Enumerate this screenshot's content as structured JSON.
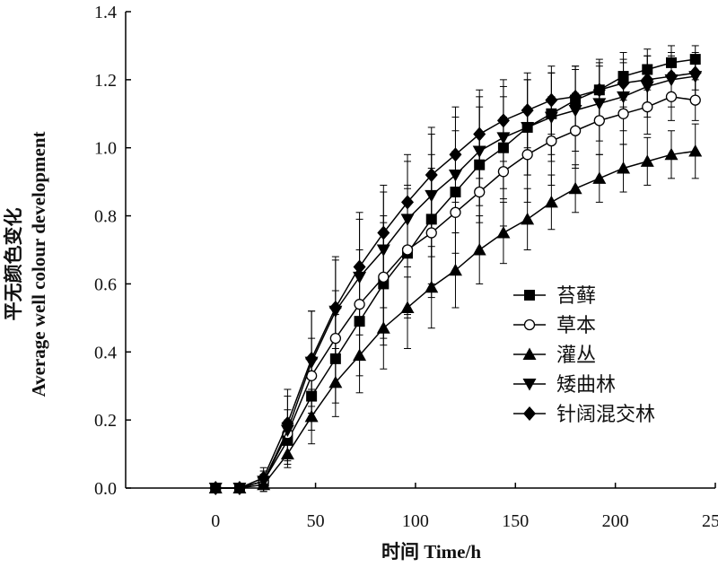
{
  "chart_data": {
    "type": "line",
    "xlabel": "时间 Time/h",
    "ylabel_line1": "平无颜色变化",
    "ylabel_line2": "Average well colour development",
    "xlim": [
      -45,
      250
    ],
    "ylim": [
      0.0,
      1.4
    ],
    "x_ticks": [
      0,
      50,
      100,
      150,
      200,
      250
    ],
    "y_ticks": [
      0.0,
      0.2,
      0.4,
      0.6,
      0.8,
      1.0,
      1.2,
      1.4
    ],
    "y_tick_labels": [
      "0.0",
      "0.2",
      "0.4",
      "0.6",
      "0.8",
      "1.0",
      "1.2",
      "1.4"
    ],
    "grid": false,
    "legend_position": "bottom-right",
    "x": [
      0,
      12,
      24,
      36,
      48,
      60,
      72,
      84,
      96,
      108,
      120,
      132,
      144,
      156,
      168,
      180,
      192,
      204,
      216,
      228,
      240
    ],
    "series": [
      {
        "name": "苔藓",
        "marker": "square-filled",
        "values": [
          0.0,
          0.0,
          0.02,
          0.14,
          0.27,
          0.38,
          0.49,
          0.6,
          0.69,
          0.79,
          0.87,
          0.95,
          1.0,
          1.06,
          1.1,
          1.14,
          1.17,
          1.21,
          1.23,
          1.25,
          1.26
        ],
        "errors": [
          0.0,
          0.0,
          0.02,
          0.06,
          0.1,
          0.13,
          0.16,
          0.18,
          0.19,
          0.19,
          0.18,
          0.17,
          0.15,
          0.14,
          0.12,
          0.1,
          0.09,
          0.07,
          0.06,
          0.05,
          0.04
        ]
      },
      {
        "name": "草本",
        "marker": "circle-open",
        "values": [
          0.0,
          0.0,
          0.02,
          0.16,
          0.33,
          0.44,
          0.54,
          0.62,
          0.7,
          0.75,
          0.81,
          0.87,
          0.93,
          0.98,
          1.02,
          1.05,
          1.08,
          1.1,
          1.12,
          1.15,
          1.14
        ],
        "errors": [
          0.0,
          0.0,
          0.02,
          0.07,
          0.11,
          0.14,
          0.16,
          0.18,
          0.19,
          0.19,
          0.18,
          0.17,
          0.16,
          0.14,
          0.13,
          0.11,
          0.1,
          0.09,
          0.08,
          0.07,
          0.06
        ]
      },
      {
        "name": "灌丛",
        "marker": "triangle-up-filled",
        "values": [
          0.0,
          0.0,
          0.01,
          0.1,
          0.21,
          0.31,
          0.39,
          0.47,
          0.53,
          0.59,
          0.64,
          0.7,
          0.75,
          0.79,
          0.84,
          0.88,
          0.91,
          0.94,
          0.96,
          0.98,
          0.99
        ],
        "errors": [
          0.0,
          0.0,
          0.02,
          0.04,
          0.08,
          0.1,
          0.11,
          0.12,
          0.12,
          0.12,
          0.11,
          0.1,
          0.09,
          0.09,
          0.08,
          0.07,
          0.07,
          0.07,
          0.07,
          0.07,
          0.08
        ]
      },
      {
        "name": "矮曲林",
        "marker": "triangle-down-filled",
        "values": [
          0.0,
          0.0,
          0.02,
          0.17,
          0.37,
          0.52,
          0.62,
          0.7,
          0.79,
          0.86,
          0.92,
          0.99,
          1.03,
          1.06,
          1.09,
          1.11,
          1.13,
          1.15,
          1.18,
          1.2,
          1.21
        ],
        "errors": [
          0.0,
          0.0,
          0.03,
          0.1,
          0.15,
          0.15,
          0.17,
          0.17,
          0.17,
          0.18,
          0.17,
          0.16,
          0.15,
          0.14,
          0.13,
          0.12,
          0.11,
          0.1,
          0.09,
          0.08,
          0.07
        ]
      },
      {
        "name": "针阔混交林",
        "marker": "diamond-filled",
        "values": [
          0.0,
          0.0,
          0.03,
          0.19,
          0.38,
          0.53,
          0.65,
          0.75,
          0.84,
          0.92,
          0.98,
          1.04,
          1.08,
          1.11,
          1.14,
          1.15,
          1.17,
          1.19,
          1.2,
          1.21,
          1.22
        ],
        "errors": [
          0.0,
          0.0,
          0.03,
          0.1,
          0.14,
          0.15,
          0.16,
          0.14,
          0.14,
          0.14,
          0.14,
          0.13,
          0.12,
          0.11,
          0.1,
          0.09,
          0.08,
          0.07,
          0.07,
          0.06,
          0.05
        ]
      }
    ]
  }
}
